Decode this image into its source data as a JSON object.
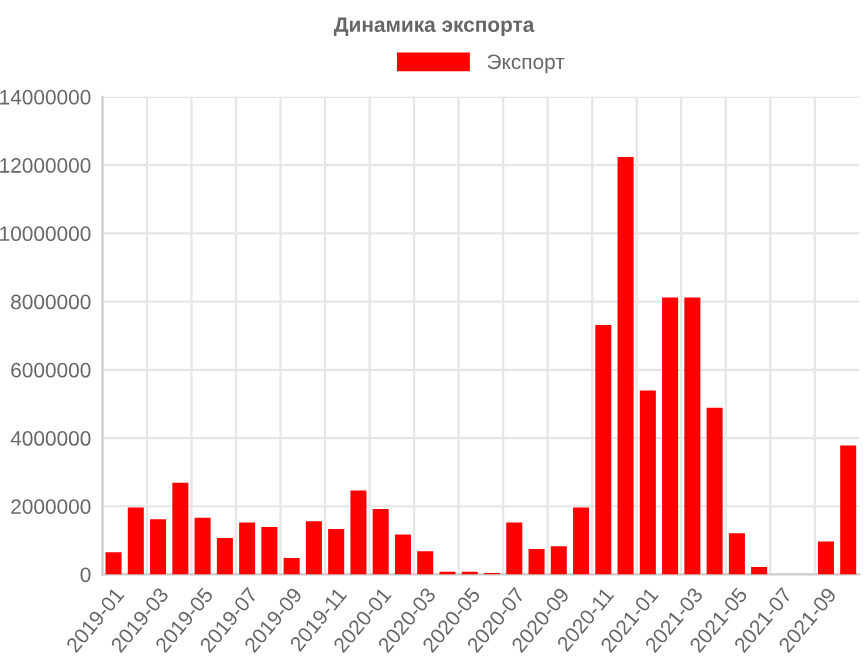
{
  "chart_data": {
    "type": "bar",
    "title": "Динамика экспорта",
    "categories": [
      "2019-01",
      null,
      "2019-03",
      null,
      "2019-05",
      null,
      "2019-07",
      null,
      "2019-09",
      null,
      "2019-11",
      null,
      "2020-01",
      null,
      "2020-03",
      null,
      "2020-05",
      null,
      "2020-07",
      null,
      "2020-09",
      null,
      "2020-11",
      null,
      "2021-01",
      null,
      "2021-03",
      null,
      "2021-05",
      null,
      "2021-07",
      null,
      "2021-09",
      null
    ],
    "series": [
      {
        "name": "Экспорт",
        "color": "#ff0000",
        "values": [
          650000,
          1960000,
          1620000,
          2690000,
          1660000,
          1070000,
          1520000,
          1390000,
          480000,
          1560000,
          1330000,
          2460000,
          1920000,
          1170000,
          680000,
          80000,
          80000,
          40000,
          1520000,
          750000,
          830000,
          1960000,
          7310000,
          12240000,
          5390000,
          8120000,
          8120000,
          4890000,
          1210000,
          220000,
          0,
          0,
          970000,
          3780000
        ]
      }
    ],
    "ylim": [
      0,
      14000000
    ],
    "yticks": [
      0,
      2000000,
      4000000,
      6000000,
      8000000,
      10000000,
      12000000,
      14000000
    ],
    "grid": true,
    "legend": "top"
  }
}
